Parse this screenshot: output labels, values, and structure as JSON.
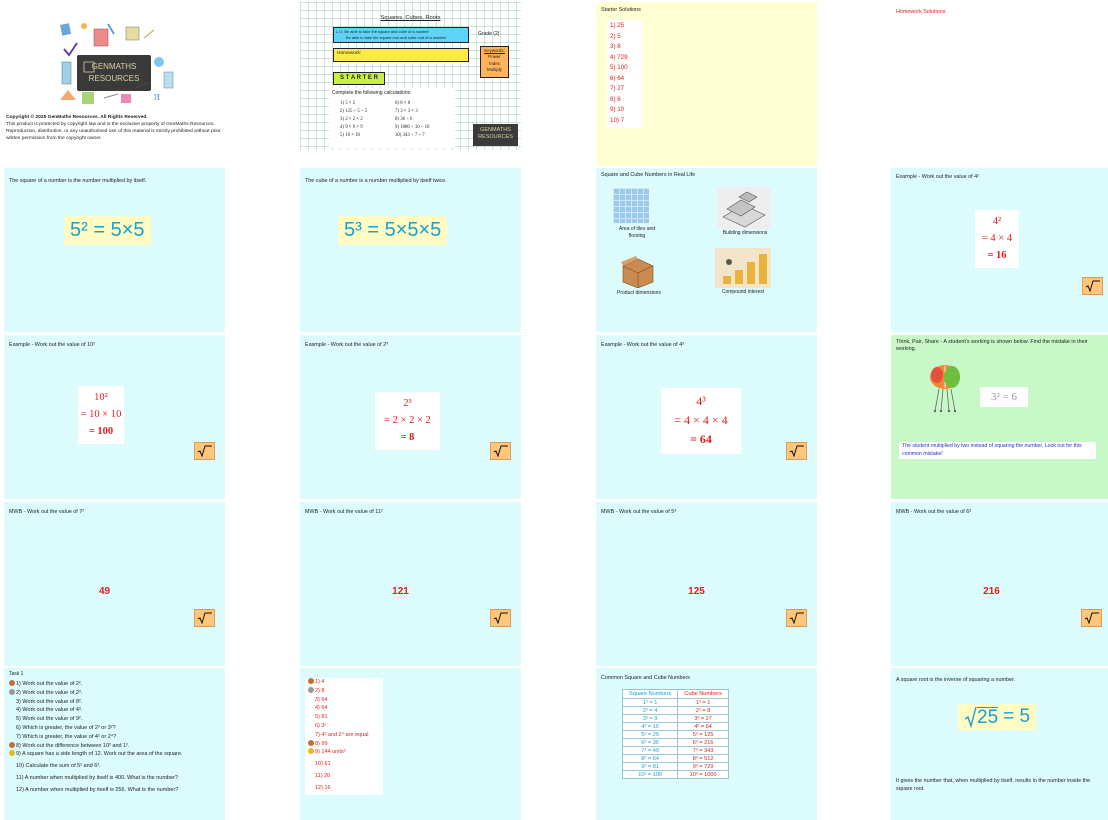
{
  "colors": {
    "cyan_bg": "#dcfbfc",
    "yellow_bg": "#ffffd3",
    "green_bg": "#c8f8c8",
    "answer_red": "#e31c1c",
    "formula_blue": "#15a1d6",
    "root_button": "#ffc67c"
  },
  "title_slide": {
    "logo_line1": "GENMATHS",
    "logo_line2": "RESOURCES",
    "copyright_title": "Copyright © 2025 GenMaths Resources. All Rights Reserved.",
    "copyright_body": "This product is protected by copyright law and is the exclusive property of GenMaths Resources. Reproduction, distribution, or any unauthorised use of this material is strictly prohibited without prior written permission from the copyright owner."
  },
  "starter_slide": {
    "title": "Squares, Cubes, Roots",
    "lo_line1": "L.O. Be able to take the square and cube of a number",
    "lo_line2": "Be able to take the square root and cube root of a number",
    "grade": "Grade (2)",
    "homework_label": "Homework:",
    "keywords_title": "Keywords:",
    "keywords": [
      "Power",
      "Index",
      "Multiply"
    ],
    "starter_button": "S T A R T E R",
    "instruction": "Complete the following calculations.",
    "questions_left": [
      "1)   5 × 5",
      "2)   125 ÷ 5 ÷ 5",
      "3)   2 × 2 × 2",
      "4)   9 × 9 × 9",
      "5)   10 × 10"
    ],
    "questions_right": [
      "6)   8 × 8",
      "7)   3 × 3 × 3",
      "8)   36 ÷ 6",
      "9)   1000 ÷ 10 ÷ 10",
      "10)  343 ÷ 7 ÷ 7"
    ],
    "logo_line1": "GENMATHS",
    "logo_line2": "RESOURCES"
  },
  "starter_solutions": {
    "title": "Starter Solutions",
    "answers": [
      "1)  25",
      "2)  5",
      "3)  8",
      "4)  729",
      "5)  100",
      "6)  64",
      "7)  27",
      "8)  6",
      "9)  10",
      "10) 7"
    ]
  },
  "homework_solutions": {
    "title": "Homework Solutions"
  },
  "square_def": {
    "text": "The square of a number is the number multiplied by itself.",
    "formula": "5² = 5×5"
  },
  "cube_def": {
    "text": "The cube of a number is a number multiplied by itself twice.",
    "formula": "5³ = 5×5×5"
  },
  "real_life": {
    "title": "Square and Cube Numbers in Real Life",
    "items": [
      "Area of tiles and flooring",
      "Building dimensions",
      "Product dimensions",
      "Compound interest"
    ]
  },
  "example_4sq": {
    "title": "Example - Work out the value of 4²",
    "lines": [
      "4²",
      "= 4 × 4",
      "= 16"
    ]
  },
  "example_10sq": {
    "title": "Example - Work out the value of 10²",
    "lines": [
      "10²",
      "= 10 × 10",
      "= 100"
    ]
  },
  "example_2cu": {
    "title": "Example - Work out the value of 2³",
    "lines": [
      "2³",
      "= 2 × 2 × 2",
      "= 8"
    ]
  },
  "example_4cu": {
    "title": "Example - Work out the value of 4³",
    "lines": [
      "4³",
      "= 4 × 4 × 4",
      "= 64"
    ]
  },
  "think_pair": {
    "title": "Think, Pair, Share - A student's working is shown below. Find the mistake in their working.",
    "working": "3² = 6",
    "explanation": "The student multiplied by two instead of squaring the number. Look out for this common mistake!"
  },
  "mwb": [
    {
      "title": "MWB - Work out the value of 7²",
      "answer": "49"
    },
    {
      "title": "MWB - Work out the value of 11²",
      "answer": "121"
    },
    {
      "title": "MWB - Work out the value of 5³",
      "answer": "125"
    },
    {
      "title": "MWB - Work out the value of 6³",
      "answer": "216"
    }
  ],
  "task1": {
    "title": "Task 1",
    "questions": [
      "1)  Work out the value of 2².",
      "2)  Work out the value of 2³.",
      "3)  Work out the value of 8².",
      "4)  Work out the value of 4³.",
      "5)  Work out the value of 9².",
      "6)  Which is greater, the value of 2³ or 3²?",
      "7)  Which is greater, the value of 4² or 2⁴?",
      "8)  Work out the difference between 10² and 1².",
      "9)  A square has a side length of 12. Work out the area of the square.",
      "10)  Calculate the sum of 5² and 6².",
      "11)  A number when multiplied by itself is 400. What is the number?",
      "12)  A number when multiplied by itself is 256. What is the number?"
    ]
  },
  "task1_answers": {
    "answers": [
      "1)  4",
      "2)  8",
      "3)  64",
      "4)  64",
      "5)  81",
      "6)  3²",
      "7)  4² and 2⁴ are equal",
      "8)  99",
      "9)  144 units²",
      "10)  61",
      "11)  20",
      "12)  16"
    ]
  },
  "common_table": {
    "title": "Common Square and Cube Numbers",
    "headers": [
      "Square Numbers",
      "Cube Numbers"
    ],
    "squares": [
      "1² = 1",
      "2² = 4",
      "3² = 9",
      "4² = 16",
      "5² = 25",
      "6² = 36",
      "7² = 49",
      "8² = 64",
      "9² = 81",
      "10² = 100"
    ],
    "cubes": [
      "1³ = 1",
      "2³ = 8",
      "3³ = 27",
      "4³ = 64",
      "5³ = 125",
      "6³ = 216",
      "7³ = 343",
      "8³ = 512",
      "9³ = 729",
      "10³ = 1000"
    ]
  },
  "sqrt_slide": {
    "title": "A square root is the inverse of squaring a number.",
    "radicand": "25",
    "result": "= 5",
    "footer": "It gives the number that, when multiplied by itself, results in the number inside the square root."
  }
}
